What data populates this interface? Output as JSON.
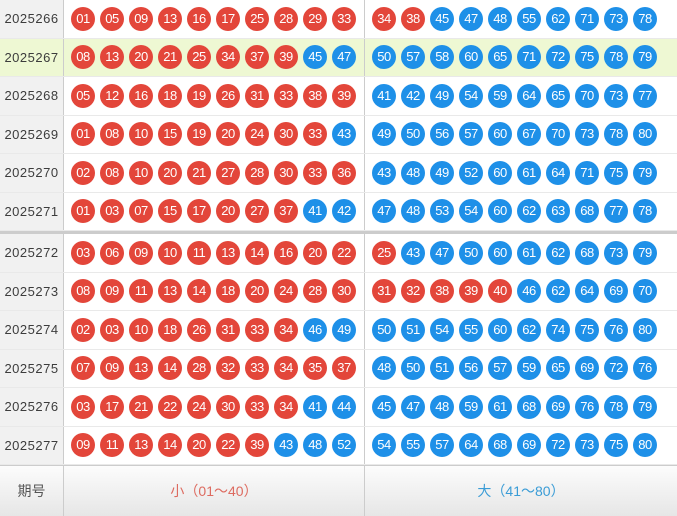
{
  "colors": {
    "red_ball": "#e3463a",
    "blue_ball": "#1e90e8",
    "highlight_row": "#eef8d3",
    "small_label": "#dd6b60",
    "big_label": "#3a9cd6",
    "period_text": "#3c3c3c"
  },
  "footer": {
    "period_label": "期号",
    "small_label": "小（01～40）",
    "big_label": "大（41～80）"
  },
  "rows": [
    {
      "period": "2025266",
      "highlight": false,
      "group_end": false,
      "small": [
        "01",
        "05",
        "09",
        "13",
        "16",
        "17",
        "25",
        "28",
        "29",
        "33"
      ],
      "big": [
        "34",
        "38",
        "45",
        "47",
        "48",
        "55",
        "62",
        "71",
        "73",
        "78"
      ]
    },
    {
      "period": "2025267",
      "highlight": true,
      "group_end": false,
      "small": [
        "08",
        "13",
        "20",
        "21",
        "25",
        "34",
        "37",
        "39",
        "45",
        "47"
      ],
      "big": [
        "50",
        "57",
        "58",
        "60",
        "65",
        "71",
        "72",
        "75",
        "78",
        "79"
      ]
    },
    {
      "period": "2025268",
      "highlight": false,
      "group_end": false,
      "small": [
        "05",
        "12",
        "16",
        "18",
        "19",
        "26",
        "31",
        "33",
        "38",
        "39"
      ],
      "big": [
        "41",
        "42",
        "49",
        "54",
        "59",
        "64",
        "65",
        "70",
        "73",
        "77"
      ]
    },
    {
      "period": "2025269",
      "highlight": false,
      "group_end": false,
      "small": [
        "01",
        "08",
        "10",
        "15",
        "19",
        "20",
        "24",
        "30",
        "33",
        "43"
      ],
      "big": [
        "49",
        "50",
        "56",
        "57",
        "60",
        "67",
        "70",
        "73",
        "78",
        "80"
      ]
    },
    {
      "period": "2025270",
      "highlight": false,
      "group_end": false,
      "small": [
        "02",
        "08",
        "10",
        "20",
        "21",
        "27",
        "28",
        "30",
        "33",
        "36"
      ],
      "big": [
        "43",
        "48",
        "49",
        "52",
        "60",
        "61",
        "64",
        "71",
        "75",
        "79"
      ]
    },
    {
      "period": "2025271",
      "highlight": false,
      "group_end": true,
      "small": [
        "01",
        "03",
        "07",
        "15",
        "17",
        "20",
        "27",
        "37",
        "41",
        "42"
      ],
      "big": [
        "47",
        "48",
        "53",
        "54",
        "60",
        "62",
        "63",
        "68",
        "77",
        "78"
      ]
    },
    {
      "period": "2025272",
      "highlight": false,
      "group_end": false,
      "small": [
        "03",
        "06",
        "09",
        "10",
        "11",
        "13",
        "14",
        "16",
        "20",
        "22"
      ],
      "big": [
        "25",
        "43",
        "47",
        "50",
        "60",
        "61",
        "62",
        "68",
        "73",
        "79"
      ]
    },
    {
      "period": "2025273",
      "highlight": false,
      "group_end": false,
      "small": [
        "08",
        "09",
        "11",
        "13",
        "14",
        "18",
        "20",
        "24",
        "28",
        "30"
      ],
      "big": [
        "31",
        "32",
        "38",
        "39",
        "40",
        "46",
        "62",
        "64",
        "69",
        "70"
      ]
    },
    {
      "period": "2025274",
      "highlight": false,
      "group_end": false,
      "small": [
        "02",
        "03",
        "10",
        "18",
        "26",
        "31",
        "33",
        "34",
        "46",
        "49"
      ],
      "big": [
        "50",
        "51",
        "54",
        "55",
        "60",
        "62",
        "74",
        "75",
        "76",
        "80"
      ]
    },
    {
      "period": "2025275",
      "highlight": false,
      "group_end": false,
      "small": [
        "07",
        "09",
        "13",
        "14",
        "28",
        "32",
        "33",
        "34",
        "35",
        "37"
      ],
      "big": [
        "48",
        "50",
        "51",
        "56",
        "57",
        "59",
        "65",
        "69",
        "72",
        "76"
      ]
    },
    {
      "period": "2025276",
      "highlight": false,
      "group_end": false,
      "small": [
        "03",
        "17",
        "21",
        "22",
        "24",
        "30",
        "33",
        "34",
        "41",
        "44"
      ],
      "big": [
        "45",
        "47",
        "48",
        "59",
        "61",
        "68",
        "69",
        "76",
        "78",
        "79"
      ]
    },
    {
      "period": "2025277",
      "highlight": false,
      "group_end": false,
      "small": [
        "09",
        "11",
        "13",
        "14",
        "20",
        "22",
        "39",
        "43",
        "48",
        "52"
      ],
      "big": [
        "54",
        "55",
        "57",
        "64",
        "68",
        "69",
        "72",
        "73",
        "75",
        "80"
      ]
    }
  ]
}
